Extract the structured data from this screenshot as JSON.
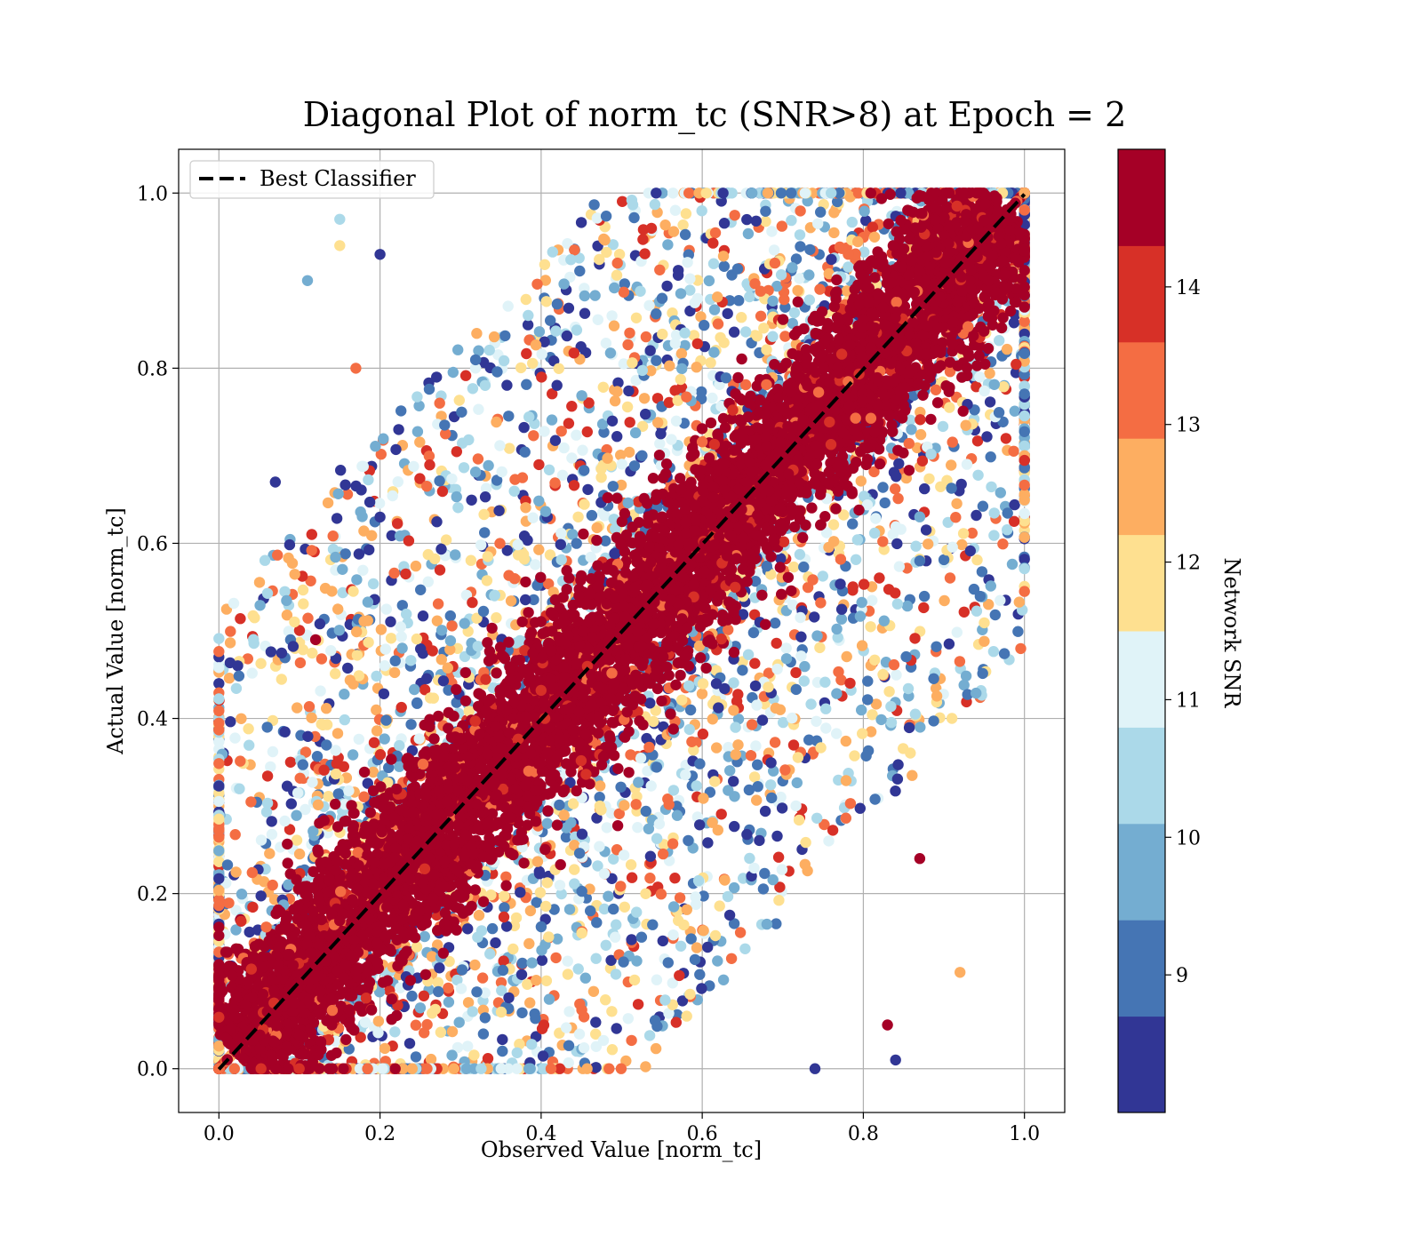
{
  "chart_data": {
    "type": "scatter",
    "title": "Diagonal Plot of norm_tc (SNR>8) at Epoch = 2",
    "xlabel": "Observed Value [norm_tc]",
    "ylabel": "Actual Value [norm_tc]",
    "xlim": [
      -0.05,
      1.05
    ],
    "ylim": [
      -0.05,
      1.05
    ],
    "xticks": [
      "0.0",
      "0.2",
      "0.4",
      "0.6",
      "0.8",
      "1.0"
    ],
    "yticks": [
      "0.0",
      "0.2",
      "0.4",
      "0.6",
      "0.8",
      "1.0"
    ],
    "grid": true,
    "legend": {
      "placement": "upper-left",
      "entries": [
        {
          "label": "Best Classifier",
          "style": "black dashed line"
        }
      ]
    },
    "reference_line": {
      "name": "Best Classifier",
      "x": [
        0,
        1
      ],
      "y": [
        0,
        1
      ],
      "color": "#000000",
      "dash": "dashed"
    },
    "colorbar": {
      "label": "Network SNR",
      "cmap": "RdYlBu_r (discrete, 10 bins)",
      "range": [
        8,
        15
      ],
      "ticks": [
        "9",
        "10",
        "11",
        "12",
        "13",
        "14"
      ],
      "bins": [
        "#313695",
        "#4575b4",
        "#74add1",
        "#abd9e9",
        "#e0f3f8",
        "#fee090",
        "#fdae61",
        "#f46d43",
        "#d73027",
        "#a50026"
      ]
    },
    "points_description": "Dense band of high-SNR points (>= ~14, dark red) around the diagonal y = x with half-width about 0.12; lower-SNR points (8-13) scattered more widely up to about 0.45 away from the diagonal; values clipped to [0, 1].",
    "sample_points": [
      [
        0.06,
        0.39,
        9.0
      ],
      [
        0.07,
        0.67,
        8.5
      ],
      [
        0.15,
        0.97,
        10.5
      ],
      [
        0.17,
        0.8,
        13.5
      ],
      [
        0.12,
        0.49,
        15.0
      ],
      [
        0.92,
        0.11,
        12.5
      ],
      [
        0.91,
        0.4,
        12.0
      ],
      [
        0.87,
        0.24,
        15.0
      ],
      [
        0.84,
        0.01,
        8.5
      ],
      [
        0.74,
        0.0,
        8.5
      ],
      [
        0.87,
        0.58,
        9.0
      ],
      [
        0.2,
        0.93,
        8.5
      ],
      [
        0.2,
        0.63,
        8.5
      ],
      [
        0.11,
        0.9,
        10.0
      ],
      [
        0.15,
        0.94,
        12.0
      ],
      [
        0.83,
        0.05,
        14.5
      ]
    ]
  }
}
